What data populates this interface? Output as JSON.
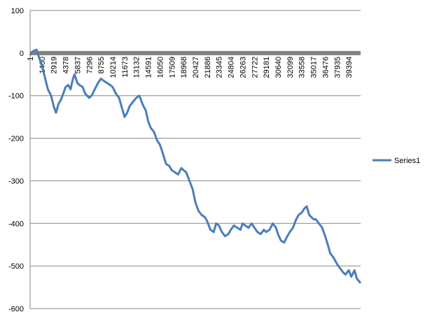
{
  "chart_data": {
    "type": "line",
    "title": "",
    "xlabel": "",
    "ylabel": "",
    "ylim": [
      -600,
      100
    ],
    "y_ticks": [
      100,
      0,
      -100,
      -200,
      -300,
      -400,
      -500,
      -600
    ],
    "x_range": [
      1,
      40853
    ],
    "x_tick_labels": [
      "1",
      "1460",
      "2919",
      "4378",
      "5837",
      "7296",
      "8755",
      "10214",
      "11673",
      "13132",
      "14591",
      "16050",
      "17509",
      "18968",
      "20427",
      "21886",
      "23345",
      "24804",
      "26263",
      "27722",
      "29181",
      "30640",
      "32099",
      "33558",
      "35017",
      "36476",
      "37935",
      "39394"
    ],
    "grid": true,
    "legend_position": "right",
    "series": [
      {
        "name": "Series1",
        "color": "#4a7ebb",
        "points": [
          [
            1,
            -5
          ],
          [
            400,
            5
          ],
          [
            800,
            8
          ],
          [
            1100,
            -10
          ],
          [
            1460,
            -30
          ],
          [
            1800,
            -55
          ],
          [
            2200,
            -85
          ],
          [
            2600,
            -100
          ],
          [
            2919,
            -125
          ],
          [
            3200,
            -140
          ],
          [
            3500,
            -120
          ],
          [
            3800,
            -110
          ],
          [
            4100,
            -95
          ],
          [
            4378,
            -80
          ],
          [
            4700,
            -75
          ],
          [
            5000,
            -85
          ],
          [
            5300,
            -60
          ],
          [
            5500,
            -50
          ],
          [
            5837,
            -70
          ],
          [
            6100,
            -75
          ],
          [
            6500,
            -80
          ],
          [
            6800,
            -95
          ],
          [
            7296,
            -105
          ],
          [
            7600,
            -100
          ],
          [
            8000,
            -85
          ],
          [
            8400,
            -70
          ],
          [
            8755,
            -60
          ],
          [
            9100,
            -65
          ],
          [
            9500,
            -70
          ],
          [
            9900,
            -75
          ],
          [
            10214,
            -80
          ],
          [
            10600,
            -95
          ],
          [
            11000,
            -105
          ],
          [
            11300,
            -125
          ],
          [
            11673,
            -150
          ],
          [
            12000,
            -140
          ],
          [
            12300,
            -125
          ],
          [
            12700,
            -115
          ],
          [
            13132,
            -105
          ],
          [
            13500,
            -100
          ],
          [
            13900,
            -120
          ],
          [
            14300,
            -135
          ],
          [
            14591,
            -160
          ],
          [
            14900,
            -175
          ],
          [
            15300,
            -185
          ],
          [
            15700,
            -205
          ],
          [
            16050,
            -215
          ],
          [
            16400,
            -235
          ],
          [
            16800,
            -260
          ],
          [
            17200,
            -265
          ],
          [
            17509,
            -275
          ],
          [
            17900,
            -280
          ],
          [
            18300,
            -285
          ],
          [
            18700,
            -270
          ],
          [
            18968,
            -275
          ],
          [
            19300,
            -280
          ],
          [
            19700,
            -300
          ],
          [
            20100,
            -320
          ],
          [
            20427,
            -350
          ],
          [
            20800,
            -370
          ],
          [
            21200,
            -380
          ],
          [
            21600,
            -385
          ],
          [
            21886,
            -395
          ],
          [
            22300,
            -415
          ],
          [
            22700,
            -420
          ],
          [
            23000,
            -400
          ],
          [
            23345,
            -405
          ],
          [
            23700,
            -420
          ],
          [
            24100,
            -430
          ],
          [
            24500,
            -425
          ],
          [
            24804,
            -415
          ],
          [
            25200,
            -405
          ],
          [
            25600,
            -410
          ],
          [
            26000,
            -415
          ],
          [
            26263,
            -400
          ],
          [
            26600,
            -405
          ],
          [
            27000,
            -410
          ],
          [
            27400,
            -400
          ],
          [
            27722,
            -410
          ],
          [
            28100,
            -420
          ],
          [
            28500,
            -425
          ],
          [
            28900,
            -415
          ],
          [
            29181,
            -420
          ],
          [
            29600,
            -415
          ],
          [
            30000,
            -400
          ],
          [
            30400,
            -410
          ],
          [
            30640,
            -425
          ],
          [
            31000,
            -440
          ],
          [
            31400,
            -445
          ],
          [
            31800,
            -430
          ],
          [
            32099,
            -420
          ],
          [
            32500,
            -410
          ],
          [
            32900,
            -390
          ],
          [
            33200,
            -380
          ],
          [
            33558,
            -375
          ],
          [
            33900,
            -365
          ],
          [
            34200,
            -360
          ],
          [
            34500,
            -380
          ],
          [
            35017,
            -390
          ],
          [
            35300,
            -390
          ],
          [
            35700,
            -400
          ],
          [
            36100,
            -410
          ],
          [
            36476,
            -430
          ],
          [
            36800,
            -450
          ],
          [
            37100,
            -470
          ],
          [
            37500,
            -480
          ],
          [
            37935,
            -495
          ],
          [
            38300,
            -505
          ],
          [
            38700,
            -515
          ],
          [
            39000,
            -520
          ],
          [
            39394,
            -510
          ],
          [
            39700,
            -525
          ],
          [
            40100,
            -510
          ],
          [
            40400,
            -530
          ],
          [
            40853,
            -540
          ]
        ]
      }
    ]
  }
}
